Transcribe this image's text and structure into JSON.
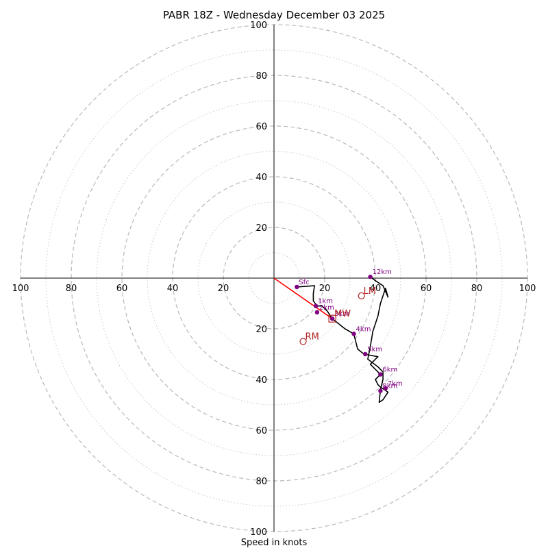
{
  "chart_data": {
    "type": "hodograph",
    "title": "PABR 18Z - Wednesday December 03 2025",
    "xlabel": "Speed in knots",
    "units": "kt",
    "max_speed": 100,
    "ring_labels": [
      "20",
      "40",
      "60",
      "80",
      "100"
    ],
    "major_rings": [
      20,
      40,
      60,
      80,
      100
    ],
    "minor_rings": [
      10,
      30,
      50,
      70,
      90
    ],
    "trace": [
      [
        9,
        -3.5
      ],
      [
        16,
        -3
      ],
      [
        15.5,
        -6
      ],
      [
        15.5,
        -9
      ],
      [
        17,
        -11
      ],
      [
        19,
        -11
      ],
      [
        21,
        -13
      ],
      [
        23,
        -16
      ],
      [
        28,
        -20
      ],
      [
        31.5,
        -22
      ],
      [
        33,
        -28
      ],
      [
        35.5,
        -30
      ],
      [
        41,
        -31
      ],
      [
        38,
        -34
      ],
      [
        42,
        -38
      ],
      [
        40,
        -40
      ],
      [
        41,
        -42
      ],
      [
        42,
        -43
      ],
      [
        45,
        -45
      ],
      [
        43,
        -48
      ],
      [
        41.5,
        -49
      ],
      [
        42,
        -44
      ],
      [
        43,
        -40
      ],
      [
        43,
        -37
      ],
      [
        41,
        -35
      ],
      [
        37,
        -32
      ],
      [
        38,
        -27
      ],
      [
        39,
        -21
      ],
      [
        41,
        -15
      ],
      [
        42,
        -10
      ],
      [
        43,
        -7
      ],
      [
        44,
        -4
      ],
      [
        45,
        -7.5
      ],
      [
        43,
        -3
      ],
      [
        40,
        -1
      ],
      [
        38,
        0.5
      ]
    ],
    "height_markers": [
      {
        "label": "Sfc",
        "u": 9,
        "v": -3.5
      },
      {
        "label": "1km",
        "u": 16.5,
        "v": -11
      },
      {
        "label": "2km",
        "u": 17,
        "v": -13.5
      },
      {
        "label": "3km",
        "u": 23,
        "v": -16
      },
      {
        "label": "4km",
        "u": 31.5,
        "v": -22
      },
      {
        "label": "5km",
        "u": 36,
        "v": -30
      },
      {
        "label": "6km",
        "u": 42,
        "v": -38
      },
      {
        "label": "7km",
        "u": 44,
        "v": -43.5
      },
      {
        "label": "8km",
        "u": 42,
        "v": -44.5
      },
      {
        "label": "12km",
        "u": 38,
        "v": 0.5
      }
    ],
    "shear_vector": {
      "from": [
        0,
        0
      ],
      "to": [
        23,
        -16
      ]
    },
    "storm_motion": [
      {
        "label": "RM",
        "u": 11.5,
        "v": -25,
        "marker": "circle"
      },
      {
        "label": "LM",
        "u": 34.5,
        "v": -7,
        "marker": "circle"
      },
      {
        "label": "MW",
        "u": 23,
        "v": -16,
        "marker": "square"
      }
    ]
  }
}
